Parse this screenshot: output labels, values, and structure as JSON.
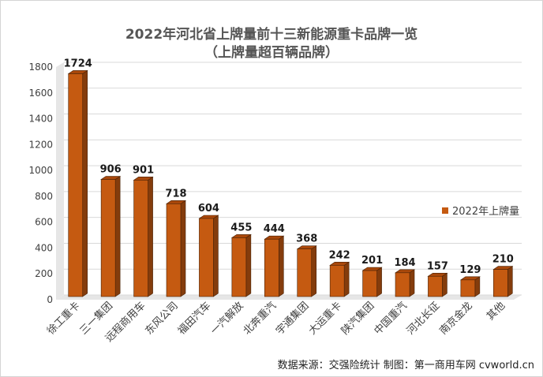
{
  "chart_data": {
    "type": "bar",
    "title": "2022年河北省上牌量前十三新能源重卡品牌一览",
    "subtitle": "（上牌量超百辆品牌）",
    "categories": [
      "徐工重卡",
      "三一集团",
      "远程商用车",
      "东风公司",
      "福田汽车",
      "一汽解放",
      "北奔重汽",
      "宇通集团",
      "大运重卡",
      "陕汽集团",
      "中国重汽",
      "河北长征",
      "南京金龙",
      "其他"
    ],
    "series": [
      {
        "name": "2022年上牌量",
        "values": [
          1724,
          906,
          901,
          718,
          604,
          455,
          444,
          368,
          242,
          201,
          184,
          157,
          129,
          210
        ]
      }
    ],
    "yticks": [
      "0",
      "200",
      "400",
      "600",
      "800",
      "1000",
      "1200",
      "1400",
      "1600",
      "1800"
    ],
    "ylim": [
      0,
      1800
    ],
    "grid": true,
    "legend": "right",
    "bar_color": "#c55a11",
    "source": "数据来源：交强险统计 制图：第一商用车网 cvworld.cn"
  }
}
